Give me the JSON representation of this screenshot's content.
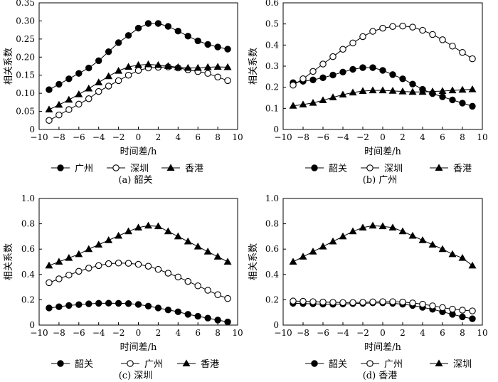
{
  "chart_data": [
    {
      "type": "line",
      "caption": "(a) 韶关",
      "xlabel": "时间差/h",
      "ylabel": "相关系数",
      "xlim": [
        -10,
        10
      ],
      "ylim": [
        0,
        0.35
      ],
      "xticks": [
        -10,
        -8,
        -6,
        -4,
        -2,
        0,
        2,
        4,
        6,
        8,
        10
      ],
      "yticks": [
        0,
        0.05,
        0.1,
        0.15,
        0.2,
        0.25,
        0.3,
        0.35
      ],
      "ytick_labels": [
        "0",
        "0.05",
        "0.10",
        "0.15",
        "0.20",
        "0.25",
        "0.30",
        "0.35"
      ],
      "x": [
        -9,
        -8,
        -7,
        -6,
        -5,
        -4,
        -3,
        -2,
        -1,
        0,
        1,
        2,
        3,
        4,
        5,
        6,
        7,
        8,
        9
      ],
      "legend_position": "bottom",
      "series": [
        {
          "name": "广州",
          "marker": "filled-circle",
          "values": [
            0.11,
            0.125,
            0.14,
            0.155,
            0.17,
            0.19,
            0.215,
            0.24,
            0.26,
            0.28,
            0.293,
            0.293,
            0.285,
            0.272,
            0.258,
            0.245,
            0.235,
            0.228,
            0.222
          ]
        },
        {
          "name": "深圳",
          "marker": "open-circle",
          "values": [
            0.025,
            0.04,
            0.055,
            0.07,
            0.085,
            0.105,
            0.12,
            0.135,
            0.15,
            0.163,
            0.17,
            0.172,
            0.173,
            0.17,
            0.165,
            0.16,
            0.155,
            0.145,
            0.135
          ]
        },
        {
          "name": "香港",
          "marker": "filled-triangle",
          "values": [
            0.055,
            0.068,
            0.082,
            0.097,
            0.113,
            0.13,
            0.147,
            0.162,
            0.173,
            0.178,
            0.18,
            0.178,
            0.175,
            0.172,
            0.17,
            0.17,
            0.172,
            0.173,
            0.172
          ]
        }
      ]
    },
    {
      "type": "line",
      "caption": "(b) 广州",
      "xlabel": "时间差/h",
      "ylabel": "相关系数",
      "xlim": [
        -10,
        10
      ],
      "ylim": [
        0,
        0.6
      ],
      "xticks": [
        -10,
        -8,
        -6,
        -4,
        -2,
        0,
        2,
        4,
        6,
        8,
        10
      ],
      "yticks": [
        0,
        0.1,
        0.2,
        0.3,
        0.4,
        0.5,
        0.6
      ],
      "ytick_labels": [
        "0",
        "0.1",
        "0.2",
        "0.3",
        "0.4",
        "0.5",
        "0.6"
      ],
      "x": [
        -9,
        -8,
        -7,
        -6,
        -5,
        -4,
        -3,
        -2,
        -1,
        0,
        1,
        2,
        3,
        4,
        5,
        6,
        7,
        8,
        9
      ],
      "legend_position": "bottom",
      "series": [
        {
          "name": "韶关",
          "marker": "filled-circle",
          "values": [
            0.222,
            0.228,
            0.235,
            0.245,
            0.258,
            0.272,
            0.285,
            0.293,
            0.293,
            0.28,
            0.26,
            0.24,
            0.215,
            0.19,
            0.17,
            0.155,
            0.14,
            0.125,
            0.11
          ]
        },
        {
          "name": "深圳",
          "marker": "open-circle",
          "values": [
            0.21,
            0.24,
            0.275,
            0.31,
            0.345,
            0.38,
            0.41,
            0.44,
            0.465,
            0.48,
            0.488,
            0.49,
            0.485,
            0.47,
            0.45,
            0.425,
            0.395,
            0.365,
            0.335
          ]
        },
        {
          "name": "香港",
          "marker": "filled-triangle",
          "values": [
            0.112,
            0.118,
            0.126,
            0.138,
            0.152,
            0.165,
            0.175,
            0.182,
            0.185,
            0.185,
            0.183,
            0.18,
            0.178,
            0.178,
            0.18,
            0.182,
            0.185,
            0.188,
            0.19
          ]
        }
      ]
    },
    {
      "type": "line",
      "caption": "(c) 深圳",
      "xlabel": "时间差/h",
      "ylabel": "相关系数",
      "xlim": [
        -10,
        10
      ],
      "ylim": [
        0,
        1.0
      ],
      "xticks": [
        -10,
        -8,
        -6,
        -4,
        -2,
        0,
        2,
        4,
        6,
        8,
        10
      ],
      "yticks": [
        0,
        0.2,
        0.4,
        0.6,
        0.8,
        1.0
      ],
      "ytick_labels": [
        "0",
        "0.2",
        "0.4",
        "0.6",
        "0.8",
        "1.0"
      ],
      "x": [
        -9,
        -8,
        -7,
        -6,
        -5,
        -4,
        -3,
        -2,
        -1,
        0,
        1,
        2,
        3,
        4,
        5,
        6,
        7,
        8,
        9
      ],
      "legend_position": "bottom",
      "series": [
        {
          "name": "韶关",
          "marker": "filled-circle",
          "values": [
            0.135,
            0.145,
            0.155,
            0.162,
            0.168,
            0.172,
            0.173,
            0.172,
            0.17,
            0.163,
            0.15,
            0.135,
            0.12,
            0.105,
            0.085,
            0.07,
            0.055,
            0.04,
            0.025
          ]
        },
        {
          "name": "广州",
          "marker": "open-circle",
          "values": [
            0.335,
            0.365,
            0.395,
            0.425,
            0.45,
            0.47,
            0.485,
            0.49,
            0.488,
            0.48,
            0.465,
            0.44,
            0.41,
            0.38,
            0.345,
            0.31,
            0.275,
            0.24,
            0.21
          ]
        },
        {
          "name": "香港",
          "marker": "filled-triangle",
          "values": [
            0.47,
            0.5,
            0.53,
            0.56,
            0.6,
            0.635,
            0.67,
            0.705,
            0.74,
            0.77,
            0.785,
            0.78,
            0.74,
            0.7,
            0.66,
            0.62,
            0.58,
            0.54,
            0.5
          ]
        }
      ]
    },
    {
      "type": "line",
      "caption": "(d) 香港",
      "xlabel": "时间差/h",
      "ylabel": "相关系数",
      "xlim": [
        -10,
        10
      ],
      "ylim": [
        0,
        1.0
      ],
      "xticks": [
        -10,
        -8,
        -6,
        -4,
        -2,
        0,
        2,
        4,
        6,
        8,
        10
      ],
      "yticks": [
        0,
        0.2,
        0.4,
        0.6,
        0.8,
        1.0
      ],
      "ytick_labels": [
        "0",
        "0.2",
        "0.4",
        "0.6",
        "0.8",
        "1.0"
      ],
      "x": [
        -9,
        -8,
        -7,
        -6,
        -5,
        -4,
        -3,
        -2,
        -1,
        0,
        1,
        2,
        3,
        4,
        5,
        6,
        7,
        8,
        9
      ],
      "legend_position": "bottom",
      "series": [
        {
          "name": "韶关",
          "marker": "filled-circle",
          "values": [
            0.172,
            0.17,
            0.168,
            0.166,
            0.165,
            0.167,
            0.17,
            0.172,
            0.175,
            0.175,
            0.172,
            0.165,
            0.155,
            0.14,
            0.125,
            0.105,
            0.085,
            0.065,
            0.05
          ]
        },
        {
          "name": "广州",
          "marker": "open-circle",
          "values": [
            0.19,
            0.188,
            0.185,
            0.182,
            0.18,
            0.178,
            0.178,
            0.18,
            0.183,
            0.185,
            0.185,
            0.182,
            0.175,
            0.165,
            0.152,
            0.138,
            0.126,
            0.118,
            0.112
          ]
        },
        {
          "name": "深圳",
          "marker": "filled-triangle",
          "values": [
            0.5,
            0.54,
            0.58,
            0.62,
            0.66,
            0.7,
            0.74,
            0.77,
            0.785,
            0.78,
            0.77,
            0.74,
            0.705,
            0.67,
            0.635,
            0.6,
            0.56,
            0.53,
            0.47
          ]
        }
      ]
    }
  ]
}
